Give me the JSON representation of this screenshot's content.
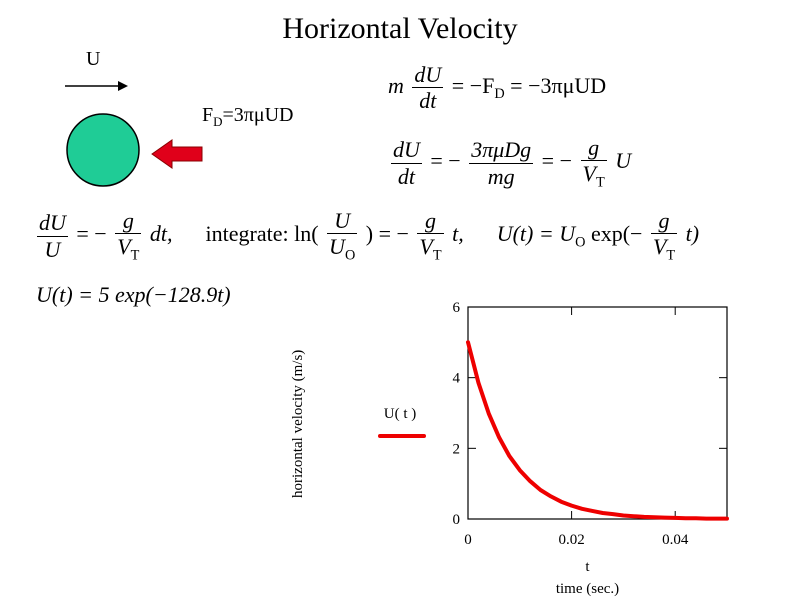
{
  "title": "Horizontal Velocity",
  "sketch": {
    "velocity_label": "U",
    "drag_label": "F",
    "drag_label_sub": "D",
    "drag_label_rest": "=3πμUD",
    "ball_color": "#1fcc96",
    "arrow_color": "#e0001a"
  },
  "equations": {
    "eq1": {
      "lhs_m": "m",
      "num": "dU",
      "den": "dt",
      "mid": "= −F",
      "mid_sub": "D",
      "rhs": "= −3πμUD"
    },
    "eq2": {
      "lhs_num": "dU",
      "lhs_den": "dt",
      "eq": "= −",
      "num2": "3πμDg",
      "den2": "mg",
      "eq2": "= −",
      "num3": "g",
      "den3": "V",
      "den3_sub": "T",
      "tail": "U"
    },
    "eq3": {
      "a_num": "dU",
      "a_den": "U",
      "a_eq": "= −",
      "a_gnum": "g",
      "a_gden": "V",
      "a_gsub": "T",
      "a_tail": "dt,",
      "b_text": "integrate: ln(",
      "b_num": "U",
      "b_den": "U",
      "b_densub": "O",
      "b_eq": ") = −",
      "b_gnum": "g",
      "b_gden": "V",
      "b_gsub": "T",
      "b_tail": "t,",
      "c_lhs": "U(t) = U",
      "c_sub": "O",
      "c_mid": " exp(−",
      "c_gnum": "g",
      "c_gden": "V",
      "c_gsub": "T",
      "c_tail": "t)"
    },
    "eq4": "U(t) = 5 exp(−128.9t)"
  },
  "chart_data": {
    "type": "line",
    "title": "",
    "xlabel": "t",
    "xlabel2": "time (sec.)",
    "ylabel": "horizontal velocity (m/s)",
    "xlim": [
      0,
      0.05
    ],
    "ylim": [
      0,
      6
    ],
    "xticks": [
      "0",
      "0.02",
      "0.04"
    ],
    "xtick_values": [
      0,
      0.02,
      0.04
    ],
    "yticks": [
      "0",
      "2",
      "4",
      "6"
    ],
    "ytick_values": [
      0,
      2,
      4,
      6
    ],
    "legend": "U( t )",
    "series": [
      {
        "name": "U( t )",
        "color": "#ee0000",
        "x": [
          0,
          0.002,
          0.004,
          0.006,
          0.008,
          0.01,
          0.012,
          0.014,
          0.016,
          0.018,
          0.02,
          0.022,
          0.024,
          0.026,
          0.028,
          0.03,
          0.032,
          0.034,
          0.036,
          0.038,
          0.04,
          0.042,
          0.044,
          0.046,
          0.048,
          0.05
        ],
        "y": [
          5.0,
          3.86,
          2.99,
          2.31,
          1.78,
          1.38,
          1.07,
          0.82,
          0.64,
          0.49,
          0.38,
          0.29,
          0.23,
          0.17,
          0.14,
          0.1,
          0.08,
          0.06,
          0.05,
          0.04,
          0.03,
          0.02,
          0.02,
          0.01,
          0.01,
          0.01
        ]
      }
    ]
  }
}
